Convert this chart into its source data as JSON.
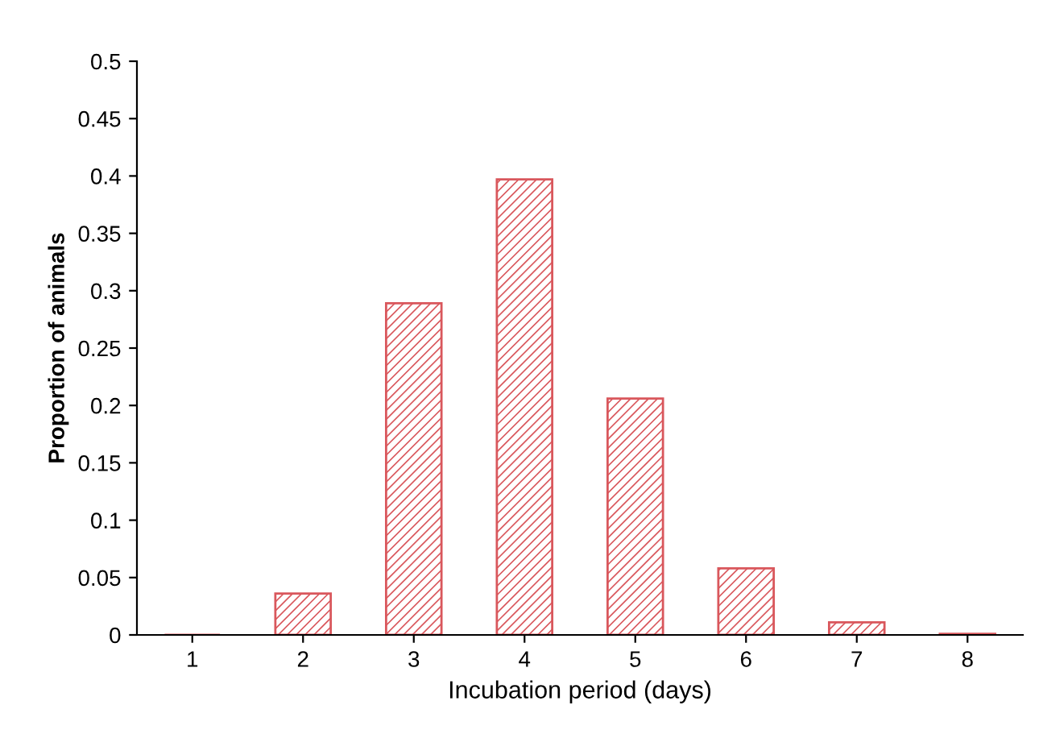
{
  "chart_data": {
    "type": "bar",
    "xlabel": "Incubation period (days)",
    "ylabel": "Proportion of animals",
    "categories": [
      "1",
      "2",
      "3",
      "4",
      "5",
      "6",
      "7",
      "8"
    ],
    "values": [
      0,
      0.036,
      0.289,
      0.397,
      0.206,
      0.058,
      0.011,
      0.001
    ],
    "color": "#d9575c",
    "ylim": [
      0,
      0.5
    ],
    "yticks": [
      0,
      0.05,
      0.1,
      0.15,
      0.2,
      0.25,
      0.3,
      0.35,
      0.4,
      0.45,
      0.5
    ],
    "grid": false
  }
}
